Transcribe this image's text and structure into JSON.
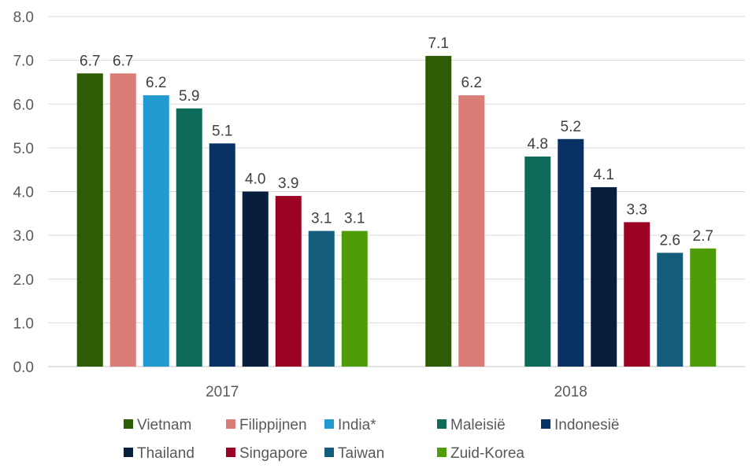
{
  "chart_data": {
    "type": "bar",
    "title": "",
    "xlabel": "",
    "ylabel": "",
    "ylim": [
      0,
      8
    ],
    "yticks": [
      "0.0",
      "1.0",
      "2.0",
      "3.0",
      "4.0",
      "5.0",
      "6.0",
      "7.0",
      "8.0"
    ],
    "grid": true,
    "legend_position": "bottom",
    "categories": [
      "2017",
      "2018"
    ],
    "series": [
      {
        "name": "Vietnam",
        "color": "#2E5C04",
        "values": [
          6.7,
          7.1
        ],
        "labels": [
          "6.7",
          "7.1"
        ]
      },
      {
        "name": "Filippijnen",
        "color": "#D97D76",
        "values": [
          6.7,
          6.2
        ],
        "labels": [
          "6.7",
          "6.2"
        ]
      },
      {
        "name": "India*",
        "color": "#219ACF",
        "values": [
          6.2,
          null
        ],
        "labels": [
          "6.2",
          ""
        ]
      },
      {
        "name": "Maleisië",
        "color": "#0E6B59",
        "values": [
          5.9,
          4.8
        ],
        "labels": [
          "5.9",
          "4.8"
        ]
      },
      {
        "name": "Indonesië",
        "color": "#0A3163",
        "values": [
          5.1,
          5.2
        ],
        "labels": [
          "5.1",
          "5.2"
        ]
      },
      {
        "name": "Thailand",
        "color": "#071F3D",
        "values": [
          4.0,
          4.1
        ],
        "labels": [
          "4.0",
          "4.1"
        ]
      },
      {
        "name": "Singapore",
        "color": "#9B0324",
        "values": [
          3.9,
          3.3
        ],
        "labels": [
          "3.9",
          "3.3"
        ]
      },
      {
        "name": "Taiwan",
        "color": "#135C7C",
        "values": [
          3.1,
          2.6
        ],
        "labels": [
          "3.1",
          "2.6"
        ]
      },
      {
        "name": "Zuid-Korea",
        "color": "#4E9C09",
        "values": [
          3.1,
          2.7
        ],
        "labels": [
          "3.1",
          "2.7"
        ]
      }
    ]
  }
}
